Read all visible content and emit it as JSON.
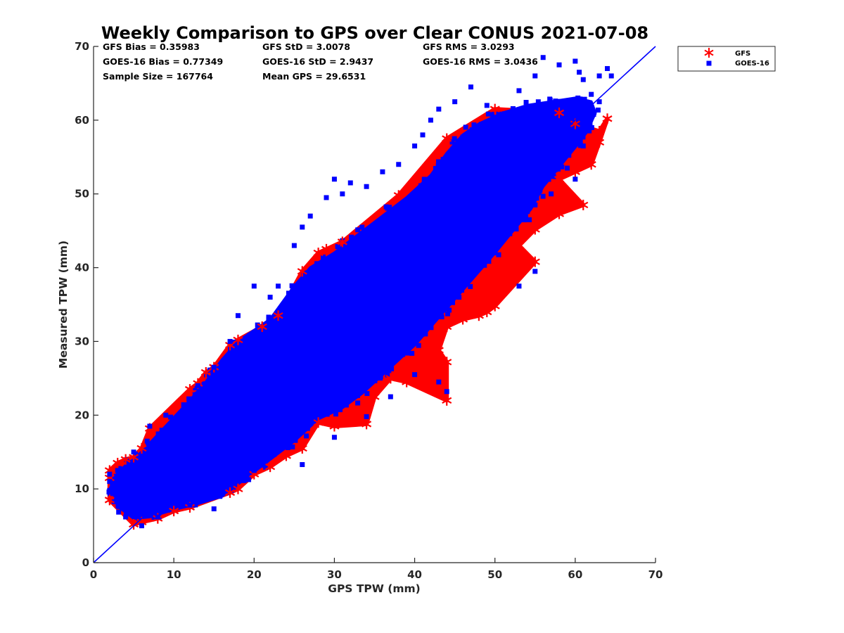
{
  "chart_data": {
    "type": "scatter",
    "title": "Weekly Comparison to GPS over Clear CONUS 2021-07-08",
    "xlabel": "GPS TPW (mm)",
    "ylabel": "Measured TPW (mm)",
    "xlim": [
      0,
      70
    ],
    "ylim": [
      0,
      70
    ],
    "xticks": [
      "0",
      "10",
      "20",
      "30",
      "40",
      "50",
      "60",
      "70"
    ],
    "yticks": [
      "0",
      "10",
      "20",
      "30",
      "40",
      "50",
      "60",
      "70"
    ],
    "grid": false,
    "legend_position": "outside-top-right",
    "reference_line": {
      "from": [
        0,
        0
      ],
      "to": [
        70,
        70
      ],
      "color": "#0000ff"
    },
    "stats": [
      "GFS Bias = 0.35983",
      "GFS StD = 3.0078",
      "GFS RMS = 3.0293",
      "GOES-16 Bias = 0.77349",
      "GOES-16 StD = 2.9437",
      "GOES-16 RMS = 3.0436",
      "Sample Size = 167764",
      "Mean GPS = 29.6531"
    ],
    "series": [
      {
        "name": "GFS",
        "marker": "asterisk",
        "color": "#ff0000",
        "points": [
          [
            2,
            12.5
          ],
          [
            3,
            13.5
          ],
          [
            4,
            14
          ],
          [
            5,
            14.3
          ],
          [
            6,
            15.5
          ],
          [
            7,
            18.2
          ],
          [
            12,
            23.5
          ],
          [
            13,
            24.3
          ],
          [
            14,
            25.8
          ],
          [
            15,
            26.5
          ],
          [
            17,
            29.5
          ],
          [
            18,
            30.2
          ],
          [
            21,
            32
          ],
          [
            23,
            33.5
          ],
          [
            26,
            39.5
          ],
          [
            28,
            42
          ],
          [
            29,
            42.5
          ],
          [
            31,
            43.5
          ],
          [
            38,
            49.8
          ],
          [
            44,
            57.5
          ],
          [
            50,
            61.5
          ],
          [
            58,
            61
          ],
          [
            60,
            59.5
          ],
          [
            63,
            58.5
          ],
          [
            64,
            60.2
          ],
          [
            63,
            57
          ],
          [
            62,
            54
          ],
          [
            60,
            53
          ],
          [
            58,
            52
          ],
          [
            61,
            48.5
          ],
          [
            58,
            47.3
          ],
          [
            55,
            45.2
          ],
          [
            53,
            43
          ],
          [
            55,
            40.8
          ],
          [
            50,
            34.8
          ],
          [
            49,
            34
          ],
          [
            48,
            33.5
          ],
          [
            46,
            33
          ],
          [
            44,
            32
          ],
          [
            43,
            28.8
          ],
          [
            44,
            27.2
          ],
          [
            44,
            22
          ],
          [
            39,
            24.5
          ],
          [
            37,
            25
          ],
          [
            35,
            22.5
          ],
          [
            34,
            18.8
          ],
          [
            30,
            18.5
          ],
          [
            28,
            19
          ],
          [
            26,
            15.5
          ],
          [
            24,
            14.5
          ],
          [
            22,
            13
          ],
          [
            20,
            12
          ],
          [
            18,
            10
          ],
          [
            17,
            9.5
          ],
          [
            12,
            7.5
          ],
          [
            10,
            7
          ],
          [
            8,
            6
          ],
          [
            6,
            5.5
          ],
          [
            5,
            5.2
          ],
          [
            2,
            8.5
          ],
          [
            2,
            11.5
          ]
        ]
      },
      {
        "name": "GOES-16",
        "marker": "square",
        "color": "#0000ff",
        "points": [
          [
            2,
            12
          ],
          [
            3,
            12.5
          ],
          [
            5,
            15
          ],
          [
            7,
            18.5
          ],
          [
            9,
            20
          ],
          [
            13,
            24
          ],
          [
            15,
            26.5
          ],
          [
            17,
            30
          ],
          [
            18,
            33.5
          ],
          [
            20,
            37.5
          ],
          [
            22,
            36
          ],
          [
            23,
            37.5
          ],
          [
            25,
            43
          ],
          [
            26,
            45.5
          ],
          [
            27,
            47
          ],
          [
            29,
            49.5
          ],
          [
            30,
            52
          ],
          [
            31,
            50
          ],
          [
            32,
            51.5
          ],
          [
            34,
            51
          ],
          [
            36,
            53
          ],
          [
            38,
            54
          ],
          [
            40,
            56.5
          ],
          [
            41,
            58
          ],
          [
            42,
            60
          ],
          [
            43,
            61.5
          ],
          [
            45,
            62.5
          ],
          [
            47,
            64.5
          ],
          [
            49,
            62
          ],
          [
            52,
            61
          ],
          [
            53,
            64
          ],
          [
            55,
            66
          ],
          [
            56,
            68.5
          ],
          [
            58,
            67.5
          ],
          [
            60,
            68
          ],
          [
            60.5,
            66.5
          ],
          [
            61,
            65.5
          ],
          [
            63,
            66
          ],
          [
            64,
            67
          ],
          [
            64.5,
            66
          ],
          [
            62,
            63.5
          ],
          [
            63,
            62.5
          ],
          [
            61,
            59
          ],
          [
            61,
            56.5
          ],
          [
            59,
            53.5
          ],
          [
            60,
            52
          ],
          [
            57,
            50
          ],
          [
            55,
            48.5
          ],
          [
            55,
            39.5
          ],
          [
            53,
            37.5
          ],
          [
            50,
            42
          ],
          [
            47,
            42
          ],
          [
            44,
            23.2
          ],
          [
            43,
            24.5
          ],
          [
            40,
            25.5
          ],
          [
            37,
            22.5
          ],
          [
            34,
            19.8
          ],
          [
            30,
            17
          ],
          [
            26,
            13.3
          ],
          [
            20,
            12.5
          ],
          [
            15,
            7.3
          ],
          [
            12,
            7.8
          ],
          [
            8,
            6.2
          ],
          [
            6,
            5
          ],
          [
            4,
            6.2
          ],
          [
            2,
            9.8
          ],
          [
            2,
            11
          ]
        ]
      }
    ]
  }
}
